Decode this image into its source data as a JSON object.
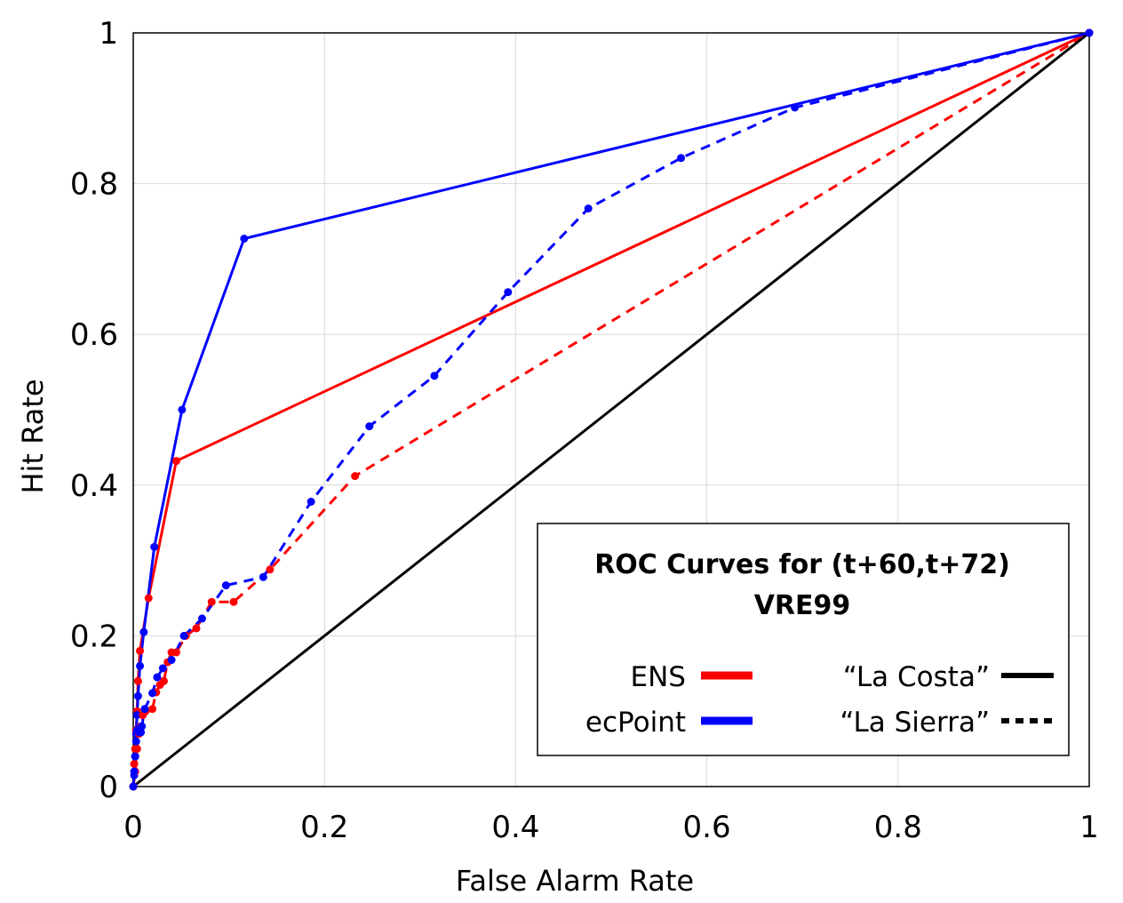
{
  "chart_data": {
    "type": "line",
    "title": "",
    "xlabel": "False Alarm Rate",
    "ylabel": "Hit Rate",
    "xlim": [
      0,
      1
    ],
    "ylim": [
      0,
      1
    ],
    "xticks": [
      "0",
      "0.2",
      "0.4",
      "0.6",
      "0.8",
      "1"
    ],
    "yticks": [
      "0",
      "0.2",
      "0.4",
      "0.6",
      "0.8",
      "1"
    ],
    "grid": true,
    "legend": {
      "position": "bottom-right",
      "title_line1": "ROC Curves for (t+60,t+72)",
      "title_line2": "VRE99",
      "entries": [
        {
          "label": "ENS",
          "color": "#ff0000",
          "style": "solid"
        },
        {
          "label": "ecPoint",
          "color": "#0000ff",
          "style": "solid"
        },
        {
          "label": "“La Costa”",
          "color": "#000000",
          "style": "solid"
        },
        {
          "label": "“La Sierra”",
          "color": "#000000",
          "style": "dashed"
        }
      ]
    },
    "series": [
      {
        "model": "ENS",
        "region": "“La Costa”",
        "color": "#ff0000",
        "style": "solid",
        "points": [
          [
            0,
            0
          ],
          [
            0.001,
            0.03
          ],
          [
            0.002,
            0.05
          ],
          [
            0.003,
            0.075
          ],
          [
            0.004,
            0.1
          ],
          [
            0.005,
            0.14
          ],
          [
            0.007,
            0.18
          ],
          [
            0.016,
            0.25
          ],
          [
            0.045,
            0.432
          ],
          [
            1,
            1
          ]
        ]
      },
      {
        "model": "ecPoint",
        "region": "“La Costa”",
        "color": "#0000ff",
        "style": "solid",
        "points": [
          [
            0,
            0
          ],
          [
            0.001,
            0.015
          ],
          [
            0.002,
            0.04
          ],
          [
            0.003,
            0.07
          ],
          [
            0.004,
            0.095
          ],
          [
            0.005,
            0.12
          ],
          [
            0.007,
            0.16
          ],
          [
            0.011,
            0.205
          ],
          [
            0.022,
            0.318
          ],
          [
            0.051,
            0.5
          ],
          [
            0.116,
            0.727
          ],
          [
            1,
            1
          ]
        ]
      },
      {
        "model": "ENS",
        "region": "“La Sierra”",
        "color": "#ff0000",
        "style": "dashed",
        "points": [
          [
            0,
            0
          ],
          [
            0.002,
            0.02
          ],
          [
            0.004,
            0.05
          ],
          [
            0.006,
            0.07
          ],
          [
            0.008,
            0.08
          ],
          [
            0.01,
            0.095
          ],
          [
            0.013,
            0.1
          ],
          [
            0.02,
            0.103
          ],
          [
            0.024,
            0.125
          ],
          [
            0.028,
            0.135
          ],
          [
            0.032,
            0.14
          ],
          [
            0.036,
            0.165
          ],
          [
            0.04,
            0.178
          ],
          [
            0.045,
            0.178
          ],
          [
            0.055,
            0.2
          ],
          [
            0.066,
            0.21
          ],
          [
            0.082,
            0.245
          ],
          [
            0.105,
            0.245
          ],
          [
            0.143,
            0.288
          ],
          [
            0.232,
            0.412
          ],
          [
            1,
            1
          ]
        ]
      },
      {
        "model": "ecPoint",
        "region": "“La Sierra”",
        "color": "#0000ff",
        "style": "dashed",
        "points": [
          [
            0,
            0
          ],
          [
            0.001,
            0.02
          ],
          [
            0.002,
            0.04
          ],
          [
            0.003,
            0.06
          ],
          [
            0.004,
            0.075
          ],
          [
            0.006,
            0.072
          ],
          [
            0.008,
            0.072
          ],
          [
            0.009,
            0.08
          ],
          [
            0.012,
            0.103
          ],
          [
            0.02,
            0.124
          ],
          [
            0.025,
            0.145
          ],
          [
            0.031,
            0.157
          ],
          [
            0.04,
            0.168
          ],
          [
            0.053,
            0.2
          ],
          [
            0.072,
            0.223
          ],
          [
            0.097,
            0.267
          ],
          [
            0.136,
            0.278
          ],
          [
            0.186,
            0.378
          ],
          [
            0.247,
            0.478
          ],
          [
            0.315,
            0.545
          ],
          [
            0.392,
            0.656
          ],
          [
            0.476,
            0.767
          ],
          [
            0.573,
            0.834
          ],
          [
            0.692,
            0.901
          ],
          [
            1,
            1
          ]
        ]
      },
      {
        "model": "",
        "region": "“La Costa”",
        "color": "#000000",
        "style": "solid",
        "reference": true,
        "points": [
          [
            0,
            0
          ],
          [
            1,
            1
          ]
        ]
      }
    ]
  }
}
